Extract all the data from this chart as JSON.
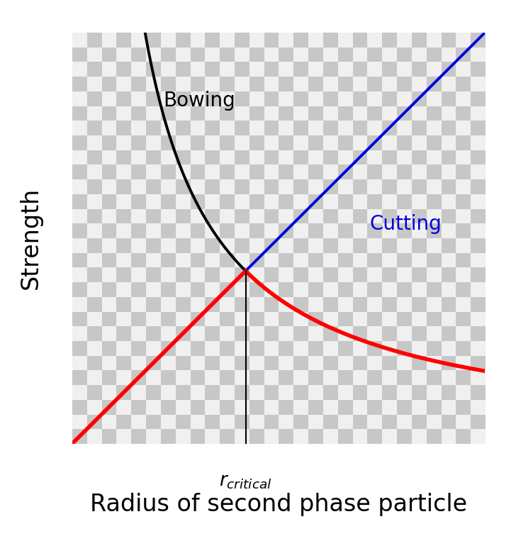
{
  "title": "",
  "xlabel": "Radius of second phase particle",
  "ylabel": "Strength",
  "background_color": "#ffffff",
  "bowing_label": "Bowing",
  "cutting_label": "Cutting",
  "rcritical_label": "r_{critical}",
  "bowing_color": "#000000",
  "cutting_color": "#0000dd",
  "red_curve_color": "#ff0000",
  "axis_color": "#000000",
  "annotation_fontsize": 20,
  "xlabel_fontsize": 24,
  "ylabel_fontsize": 24,
  "r_critical": 0.42,
  "checker_light": 0.94,
  "checker_dark": 0.78,
  "checker_n": 28
}
